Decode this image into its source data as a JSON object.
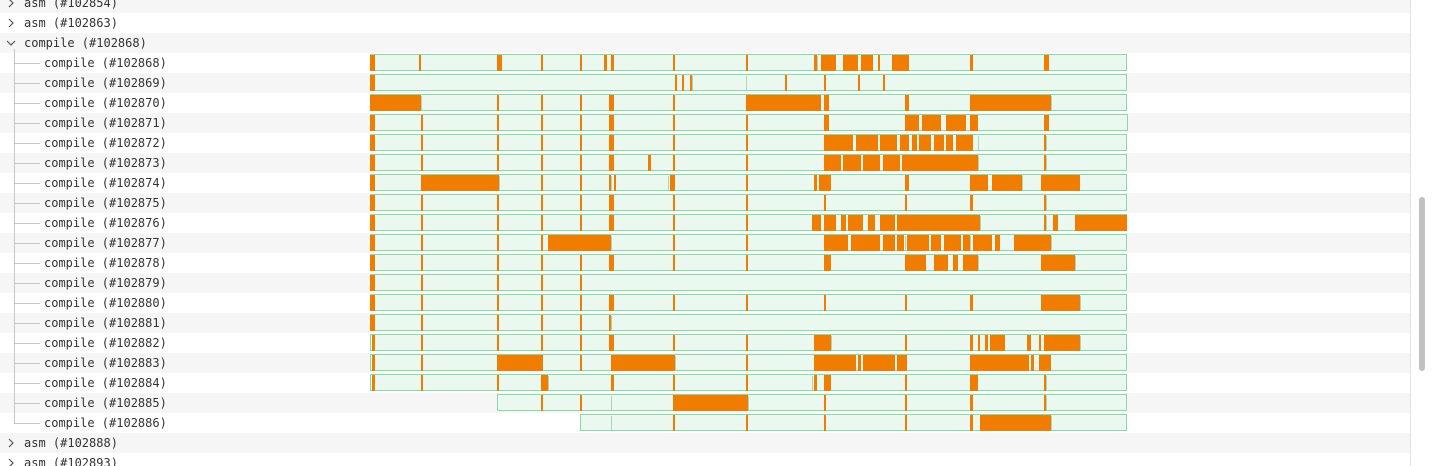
{
  "colors": {
    "span_fill": "#ebf8ef",
    "span_border": "#88d8a8",
    "active_segment": "#f07c00",
    "stripe": "#f6f6f6",
    "tree_text": "#333333"
  },
  "timeline": {
    "domain": [
      0,
      1000
    ]
  },
  "tree": [
    {
      "label": "asm (#102854)",
      "depth": 0,
      "expanded": false,
      "icon": "chevron-right-icon"
    },
    {
      "label": "asm (#102863)",
      "depth": 0,
      "expanded": false,
      "icon": "chevron-right-icon"
    },
    {
      "label": "compile (#102868)",
      "depth": 0,
      "expanded": true,
      "icon": "chevron-down-icon"
    },
    {
      "label": "compile (#102868)",
      "depth": 1,
      "span": [
        148,
        768
      ],
      "ticks": [
        188,
        252,
        288,
        320,
        346,
        396,
        456,
        514,
        588,
        640,
        700
      ],
      "segments": [
        [
          148,
          152
        ],
        [
          188,
          190
        ],
        [
          252,
          256
        ],
        [
          288,
          290
        ],
        [
          320,
          322
        ],
        [
          340,
          342
        ],
        [
          346,
          348
        ],
        [
          396,
          398
        ],
        [
          456,
          458
        ],
        [
          512,
          514
        ],
        [
          518,
          530
        ],
        [
          536,
          548
        ],
        [
          550,
          560
        ],
        [
          564,
          566
        ],
        [
          576,
          590
        ],
        [
          640,
          642
        ],
        [
          700,
          704
        ]
      ]
    },
    {
      "label": "compile (#102869)",
      "depth": 1,
      "span": [
        148,
        768
      ],
      "ticks": [
        398,
        412,
        456,
        488,
        520,
        548,
        568
      ],
      "segments": [
        [
          148,
          152
        ],
        [
          398,
          399
        ],
        [
          404,
          405
        ],
        [
          410,
          411
        ],
        [
          488,
          489
        ],
        [
          520,
          521
        ],
        [
          548,
          549
        ],
        [
          568,
          569
        ]
      ]
    },
    {
      "label": "compile (#102870)",
      "depth": 1,
      "span": [
        148,
        768
      ],
      "ticks": [
        190,
        252,
        288,
        320,
        346,
        396,
        456,
        522,
        588,
        640,
        706
      ],
      "segments": [
        [
          148,
          190
        ],
        [
          252,
          254
        ],
        [
          288,
          290
        ],
        [
          320,
          322
        ],
        [
          344,
          348
        ],
        [
          396,
          398
        ],
        [
          456,
          518
        ],
        [
          520,
          524
        ],
        [
          586,
          590
        ],
        [
          640,
          706
        ]
      ]
    },
    {
      "label": "compile (#102871)",
      "depth": 1,
      "span": [
        148,
        769
      ],
      "ticks": [
        190,
        252,
        288,
        320,
        346,
        396,
        456,
        520,
        586,
        620,
        640,
        702
      ],
      "segments": [
        [
          148,
          152
        ],
        [
          190,
          192
        ],
        [
          252,
          254
        ],
        [
          288,
          290
        ],
        [
          320,
          322
        ],
        [
          344,
          348
        ],
        [
          396,
          398
        ],
        [
          456,
          458
        ],
        [
          520,
          524
        ],
        [
          586,
          598
        ],
        [
          600,
          616
        ],
        [
          620,
          636
        ],
        [
          640,
          646
        ],
        [
          700,
          704
        ]
      ]
    },
    {
      "label": "compile (#102872)",
      "depth": 1,
      "span": [
        148,
        768
      ],
      "ticks": [
        190,
        252,
        288,
        320,
        346,
        396,
        456,
        520,
        586,
        646,
        702
      ],
      "segments": [
        [
          148,
          152
        ],
        [
          190,
          192
        ],
        [
          252,
          254
        ],
        [
          288,
          290
        ],
        [
          320,
          322
        ],
        [
          344,
          348
        ],
        [
          396,
          398
        ],
        [
          456,
          458
        ],
        [
          520,
          544
        ],
        [
          546,
          564
        ],
        [
          566,
          580
        ],
        [
          582,
          590
        ],
        [
          592,
          596
        ],
        [
          598,
          608
        ],
        [
          610,
          618
        ],
        [
          620,
          626
        ],
        [
          628,
          640
        ],
        [
          640,
          642
        ],
        [
          700,
          702
        ]
      ]
    },
    {
      "label": "compile (#102873)",
      "depth": 1,
      "span": [
        148,
        768
      ],
      "ticks": [
        190,
        252,
        288,
        320,
        346,
        376,
        396,
        456,
        520,
        586,
        646,
        702
      ],
      "segments": [
        [
          148,
          152
        ],
        [
          190,
          192
        ],
        [
          252,
          254
        ],
        [
          288,
          290
        ],
        [
          320,
          322
        ],
        [
          344,
          348
        ],
        [
          376,
          378
        ],
        [
          396,
          398
        ],
        [
          456,
          458
        ],
        [
          520,
          534
        ],
        [
          536,
          550
        ],
        [
          552,
          566
        ],
        [
          568,
          582
        ],
        [
          584,
          646
        ],
        [
          700,
          702
        ]
      ]
    },
    {
      "label": "compile (#102874)",
      "depth": 1,
      "span": [
        148,
        768
      ],
      "ticks": [
        190,
        254,
        288,
        320,
        346,
        392,
        456,
        512,
        520,
        586,
        640,
        658,
        682,
        702
      ],
      "segments": [
        [
          148,
          152
        ],
        [
          190,
          254
        ],
        [
          288,
          290
        ],
        [
          320,
          322
        ],
        [
          344,
          346
        ],
        [
          348,
          350
        ],
        [
          394,
          398
        ],
        [
          456,
          458
        ],
        [
          512,
          514
        ],
        [
          516,
          526
        ],
        [
          586,
          590
        ],
        [
          640,
          654
        ],
        [
          658,
          682
        ],
        [
          698,
          730
        ]
      ]
    },
    {
      "label": "compile (#102875)",
      "depth": 1,
      "span": [
        148,
        768
      ],
      "ticks": [
        190,
        252,
        288,
        320,
        346,
        396,
        456,
        520,
        586,
        640,
        702
      ],
      "segments": [
        [
          148,
          152
        ],
        [
          190,
          192
        ],
        [
          252,
          254
        ],
        [
          288,
          290
        ],
        [
          320,
          322
        ],
        [
          344,
          348
        ],
        [
          396,
          398
        ],
        [
          456,
          458
        ],
        [
          520,
          522
        ],
        [
          586,
          588
        ],
        [
          640,
          642
        ],
        [
          700,
          702
        ]
      ]
    },
    {
      "label": "compile (#102876)",
      "depth": 1,
      "span": [
        148,
        768
      ],
      "ticks": [
        190,
        252,
        288,
        320,
        346,
        396,
        456,
        510,
        586,
        648,
        702,
        708,
        726
      ],
      "segments": [
        [
          148,
          152
        ],
        [
          190,
          192
        ],
        [
          252,
          254
        ],
        [
          288,
          290
        ],
        [
          320,
          322
        ],
        [
          344,
          348
        ],
        [
          396,
          398
        ],
        [
          456,
          458
        ],
        [
          510,
          518
        ],
        [
          520,
          530
        ],
        [
          534,
          538
        ],
        [
          540,
          552
        ],
        [
          556,
          562
        ],
        [
          566,
          578
        ],
        [
          580,
          648
        ],
        [
          700,
          702
        ],
        [
          708,
          712
        ],
        [
          726,
          768
        ]
      ]
    },
    {
      "label": "compile (#102877)",
      "depth": 1,
      "span": [
        148,
        768
      ],
      "ticks": [
        190,
        252,
        288,
        320,
        346,
        396,
        456,
        520,
        586,
        640,
        676,
        706
      ],
      "segments": [
        [
          148,
          152
        ],
        [
          190,
          192
        ],
        [
          252,
          254
        ],
        [
          288,
          290
        ],
        [
          294,
          346
        ],
        [
          396,
          398
        ],
        [
          456,
          458
        ],
        [
          520,
          540
        ],
        [
          542,
          566
        ],
        [
          568,
          578
        ],
        [
          580,
          586
        ],
        [
          588,
          606
        ],
        [
          608,
          616
        ],
        [
          618,
          632
        ],
        [
          634,
          640
        ],
        [
          642,
          658
        ],
        [
          660,
          664
        ],
        [
          676,
          706
        ]
      ]
    },
    {
      "label": "compile (#102878)",
      "depth": 1,
      "span": [
        148,
        768
      ],
      "ticks": [
        190,
        252,
        288,
        320,
        346,
        396,
        456,
        522,
        586,
        646,
        726
      ],
      "segments": [
        [
          148,
          152
        ],
        [
          190,
          192
        ],
        [
          252,
          254
        ],
        [
          288,
          290
        ],
        [
          320,
          322
        ],
        [
          344,
          348
        ],
        [
          396,
          398
        ],
        [
          456,
          458
        ],
        [
          520,
          526
        ],
        [
          586,
          604
        ],
        [
          610,
          622
        ],
        [
          626,
          630
        ],
        [
          634,
          646
        ],
        [
          698,
          726
        ]
      ]
    },
    {
      "label": "compile (#102879)",
      "depth": 1,
      "span": [
        148,
        768
      ],
      "ticks": [
        190,
        252,
        288,
        320
      ],
      "segments": [
        [
          148,
          152
        ],
        [
          190,
          192
        ],
        [
          252,
          254
        ],
        [
          288,
          290
        ],
        [
          320,
          322
        ]
      ]
    },
    {
      "label": "compile (#102880)",
      "depth": 1,
      "span": [
        148,
        768
      ],
      "ticks": [
        190,
        252,
        288,
        320,
        346,
        396,
        456,
        520,
        586,
        640,
        698,
        730
      ],
      "segments": [
        [
          148,
          152
        ],
        [
          190,
          192
        ],
        [
          252,
          254
        ],
        [
          288,
          290
        ],
        [
          320,
          322
        ],
        [
          344,
          348
        ],
        [
          396,
          398
        ],
        [
          456,
          458
        ],
        [
          520,
          522
        ],
        [
          586,
          588
        ],
        [
          640,
          642
        ],
        [
          698,
          730
        ]
      ]
    },
    {
      "label": "compile (#102881)",
      "depth": 1,
      "span": [
        148,
        768
      ],
      "ticks": [
        190,
        252,
        288,
        320,
        346
      ],
      "segments": [
        [
          148,
          152
        ],
        [
          190,
          192
        ],
        [
          252,
          254
        ],
        [
          288,
          290
        ],
        [
          320,
          322
        ],
        [
          344,
          346
        ]
      ]
    },
    {
      "label": "compile (#102882)",
      "depth": 1,
      "span": [
        148,
        768
      ],
      "ticks": [
        190,
        252,
        288,
        320,
        346,
        396,
        456,
        526,
        586,
        640,
        730
      ],
      "segments": [
        [
          150,
          152
        ],
        [
          190,
          192
        ],
        [
          252,
          254
        ],
        [
          288,
          290
        ],
        [
          320,
          322
        ],
        [
          344,
          348
        ],
        [
          396,
          398
        ],
        [
          456,
          458
        ],
        [
          512,
          526
        ],
        [
          586,
          588
        ],
        [
          640,
          642
        ],
        [
          646,
          648
        ],
        [
          652,
          654
        ],
        [
          656,
          668
        ],
        [
          686,
          690
        ],
        [
          696,
          698
        ],
        [
          700,
          730
        ]
      ]
    },
    {
      "label": "compile (#102883)",
      "depth": 1,
      "span": [
        148,
        768
      ],
      "ticks": [
        190,
        252,
        288,
        320,
        346,
        398,
        456,
        512,
        586,
        640,
        696
      ],
      "segments": [
        [
          150,
          152
        ],
        [
          190,
          192
        ],
        [
          252,
          290
        ],
        [
          320,
          322
        ],
        [
          346,
          398
        ],
        [
          456,
          458
        ],
        [
          512,
          546
        ],
        [
          548,
          550
        ],
        [
          552,
          578
        ],
        [
          580,
          588
        ],
        [
          640,
          688
        ],
        [
          690,
          692
        ],
        [
          696,
          706
        ]
      ]
    },
    {
      "label": "compile (#102884)",
      "depth": 1,
      "span": [
        148,
        768
      ],
      "ticks": [
        190,
        252,
        288,
        294,
        346,
        396,
        456,
        510,
        586,
        640,
        702
      ],
      "segments": [
        [
          150,
          152
        ],
        [
          190,
          192
        ],
        [
          252,
          254
        ],
        [
          288,
          294
        ],
        [
          346,
          348
        ],
        [
          396,
          398
        ],
        [
          456,
          458
        ],
        [
          512,
          514
        ],
        [
          520,
          526
        ],
        [
          586,
          588
        ],
        [
          640,
          646
        ],
        [
          700,
          702
        ]
      ]
    },
    {
      "label": "compile (#102885)",
      "depth": 1,
      "span": [
        252,
        768
      ],
      "ticks": [
        288,
        320,
        346,
        396,
        458,
        520,
        586,
        640,
        702
      ],
      "segments": [
        [
          288,
          290
        ],
        [
          320,
          322
        ],
        [
          396,
          458
        ],
        [
          456,
          458
        ],
        [
          520,
          522
        ],
        [
          586,
          588
        ],
        [
          640,
          642
        ],
        [
          700,
          702
        ]
      ]
    },
    {
      "label": "compile (#102886)",
      "depth": 1,
      "span": [
        320,
        768
      ],
      "ticks": [
        346,
        396,
        456,
        520,
        586,
        640,
        648,
        706
      ],
      "segments": [
        [
          396,
          398
        ],
        [
          456,
          458
        ],
        [
          520,
          522
        ],
        [
          586,
          588
        ],
        [
          640,
          642
        ],
        [
          648,
          706
        ]
      ]
    },
    {
      "label": "asm (#102888)",
      "depth": 0,
      "expanded": false,
      "icon": "chevron-right-icon"
    },
    {
      "label": "asm (#102893)",
      "depth": 0,
      "expanded": false,
      "icon": "chevron-right-icon"
    }
  ]
}
